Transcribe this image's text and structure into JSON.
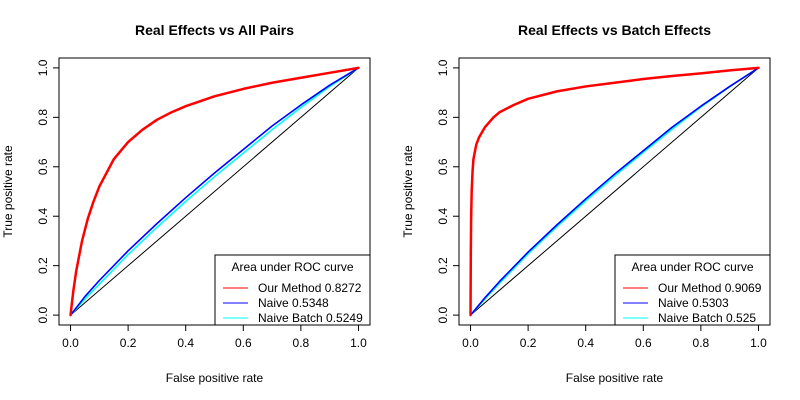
{
  "chart_data": [
    {
      "type": "line",
      "title": "Real Effects vs All Pairs",
      "xlabel": "False positive rate",
      "ylabel": "True positive rate",
      "xlim": [
        0,
        1
      ],
      "ylim": [
        0,
        1
      ],
      "xticks": [
        "0.0",
        "0.2",
        "0.4",
        "0.6",
        "0.8",
        "1.0"
      ],
      "yticks": [
        "0.0",
        "0.2",
        "0.4",
        "0.6",
        "0.8",
        "1.0"
      ],
      "legend_title": "Area under ROC curve",
      "legend_position": "bottom-right",
      "series": [
        {
          "name": "Our Method 0.8272",
          "color": "#ff0000",
          "x": [
            0,
            0.005,
            0.01,
            0.02,
            0.04,
            0.06,
            0.08,
            0.1,
            0.15,
            0.2,
            0.25,
            0.3,
            0.35,
            0.4,
            0.5,
            0.6,
            0.7,
            0.8,
            0.9,
            1.0
          ],
          "y": [
            0,
            0.05,
            0.1,
            0.18,
            0.3,
            0.39,
            0.46,
            0.52,
            0.63,
            0.7,
            0.75,
            0.79,
            0.82,
            0.845,
            0.885,
            0.915,
            0.94,
            0.96,
            0.98,
            1.0
          ]
        },
        {
          "name": "Naive 0.5348",
          "color": "#0000ff",
          "x": [
            0,
            0.05,
            0.1,
            0.2,
            0.3,
            0.4,
            0.5,
            0.6,
            0.7,
            0.8,
            0.9,
            1.0
          ],
          "y": [
            0,
            0.075,
            0.14,
            0.26,
            0.37,
            0.475,
            0.575,
            0.67,
            0.765,
            0.85,
            0.93,
            1.0
          ]
        },
        {
          "name": "Naive Batch 0.5249",
          "color": "#00ffff",
          "x": [
            0,
            0.05,
            0.1,
            0.2,
            0.3,
            0.4,
            0.5,
            0.6,
            0.7,
            0.8,
            0.9,
            1.0
          ],
          "y": [
            0,
            0.065,
            0.125,
            0.245,
            0.355,
            0.46,
            0.56,
            0.655,
            0.75,
            0.84,
            0.925,
            1.0
          ]
        },
        {
          "name": "",
          "color": "#000000",
          "x": [
            0,
            1
          ],
          "y": [
            0,
            1
          ]
        }
      ]
    },
    {
      "type": "line",
      "title": "Real Effects vs Batch Effects",
      "xlabel": "False positive rate",
      "ylabel": "True positive rate",
      "xlim": [
        0,
        1
      ],
      "ylim": [
        0,
        1
      ],
      "xticks": [
        "0.0",
        "0.2",
        "0.4",
        "0.6",
        "0.8",
        "1.0"
      ],
      "yticks": [
        "0.0",
        "0.2",
        "0.4",
        "0.6",
        "0.8",
        "1.0"
      ],
      "legend_title": "Area under ROC curve",
      "legend_position": "bottom-right",
      "series": [
        {
          "name": "Our Method 0.9069",
          "color": "#ff0000",
          "x": [
            0,
            0.001,
            0.002,
            0.004,
            0.007,
            0.01,
            0.02,
            0.03,
            0.05,
            0.08,
            0.1,
            0.15,
            0.2,
            0.3,
            0.4,
            0.5,
            0.6,
            0.7,
            0.8,
            0.9,
            1.0
          ],
          "y": [
            0,
            0.25,
            0.38,
            0.5,
            0.58,
            0.63,
            0.69,
            0.72,
            0.76,
            0.8,
            0.82,
            0.85,
            0.875,
            0.905,
            0.925,
            0.94,
            0.955,
            0.967,
            0.978,
            0.99,
            1.0
          ]
        },
        {
          "name": "Naive 0.5303",
          "color": "#0000ff",
          "x": [
            0,
            0.05,
            0.1,
            0.2,
            0.3,
            0.4,
            0.5,
            0.6,
            0.7,
            0.8,
            0.9,
            1.0
          ],
          "y": [
            0,
            0.07,
            0.135,
            0.255,
            0.365,
            0.47,
            0.57,
            0.665,
            0.76,
            0.845,
            0.925,
            1.0
          ]
        },
        {
          "name": "Naive Batch 0.525",
          "color": "#00ffff",
          "x": [
            0,
            0.05,
            0.1,
            0.2,
            0.3,
            0.4,
            0.5,
            0.6,
            0.7,
            0.8,
            0.9,
            1.0
          ],
          "y": [
            0,
            0.065,
            0.128,
            0.248,
            0.358,
            0.462,
            0.562,
            0.658,
            0.752,
            0.842,
            0.924,
            1.0
          ]
        },
        {
          "name": "",
          "color": "#000000",
          "x": [
            0,
            1
          ],
          "y": [
            0,
            1
          ]
        }
      ]
    }
  ]
}
